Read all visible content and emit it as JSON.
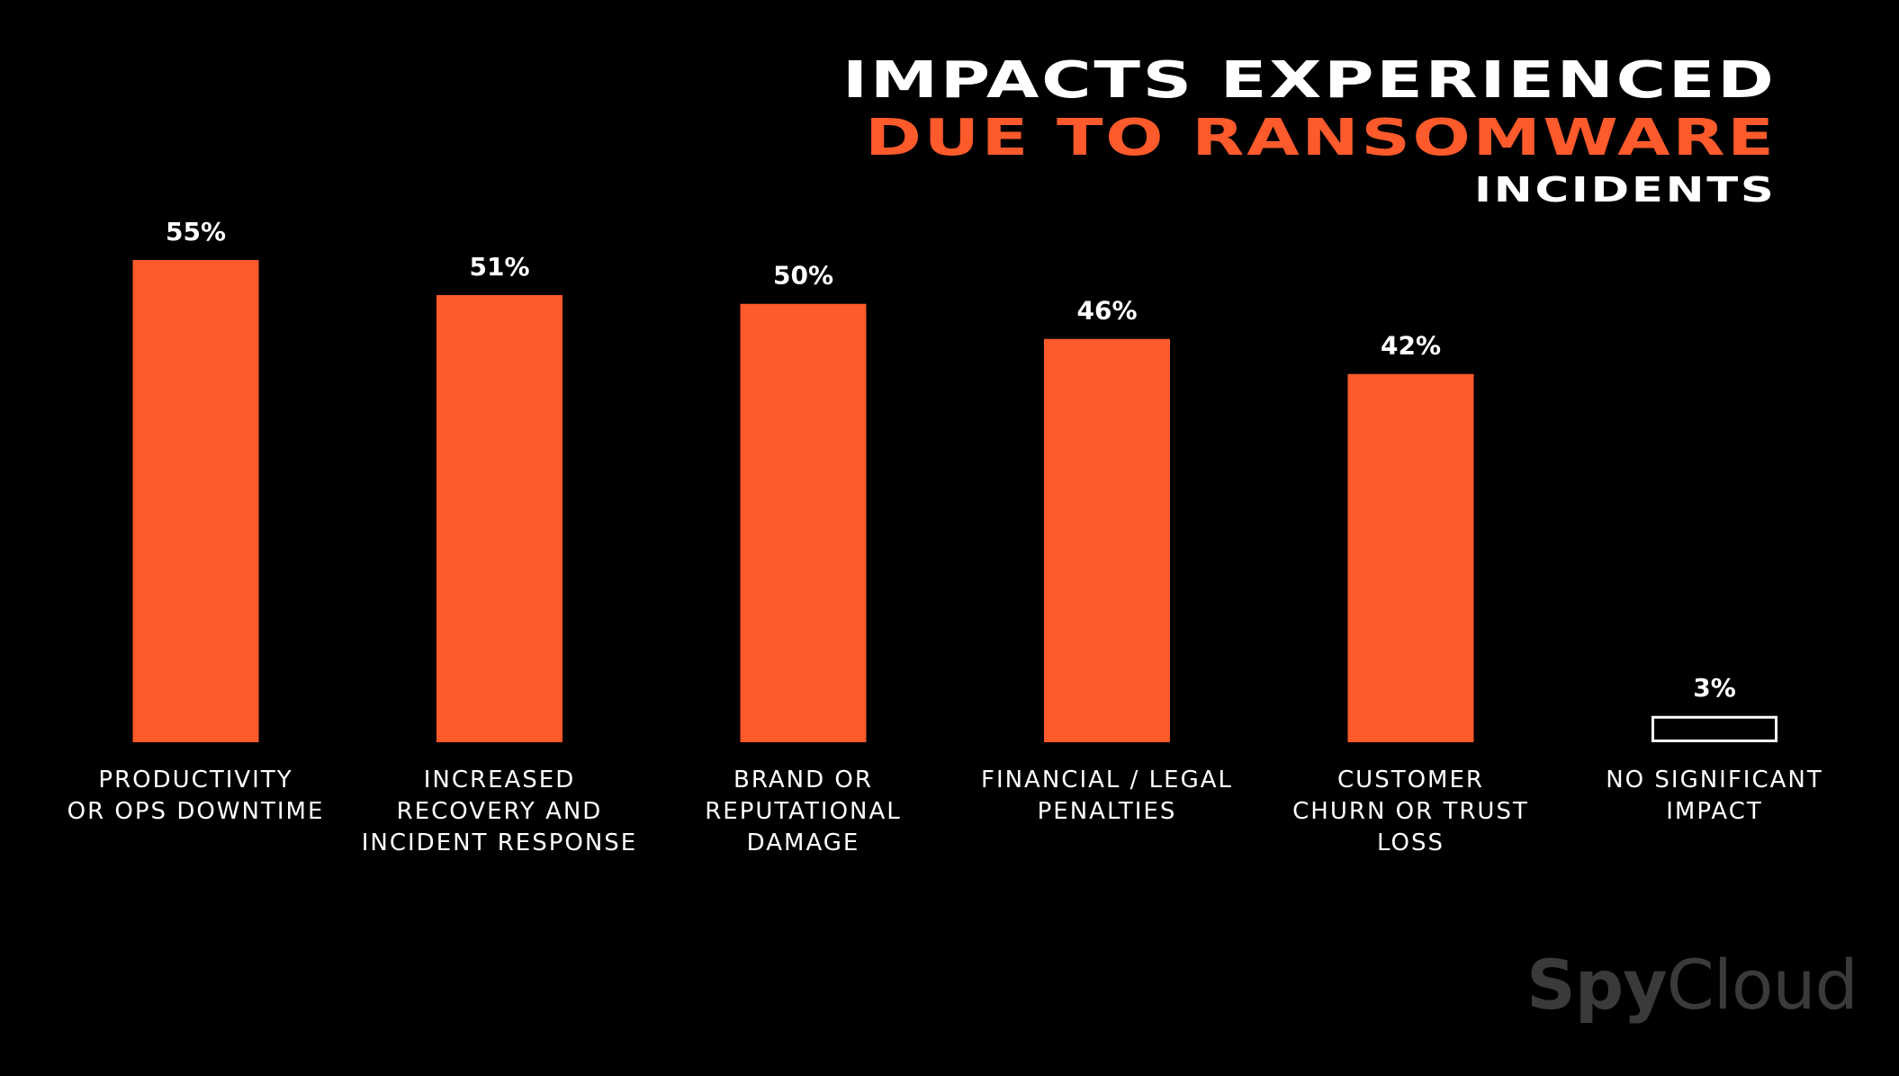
{
  "title": {
    "line1": "IMPACTS EXPERIENCED",
    "line2": "DUE TO RANSOMWARE",
    "line3": "INCIDENTS"
  },
  "brand": {
    "part1": "Spy",
    "part2": "Cloud"
  },
  "colors": {
    "accent": "#ff5a2b",
    "background": "#000000",
    "text": "#ffffff",
    "logo": "#3a3a3a"
  },
  "chart_data": {
    "type": "bar",
    "categories": [
      "PRODUCTIVITY\nOR OPS DOWNTIME",
      "INCREASED\nRECOVERY AND\nINCIDENT RESPONSE",
      "BRAND OR\nREPUTATIONAL\nDAMAGE",
      "FINANCIAL / LEGAL\nPENALTIES",
      "CUSTOMER\nCHURN OR TRUST\nLOSS",
      "NO SIGNIFICANT\nIMPACT"
    ],
    "values": [
      55,
      51,
      50,
      46,
      42,
      3
    ],
    "data_labels": [
      "55%",
      "51%",
      "50%",
      "46%",
      "42%",
      "3%"
    ],
    "unit": "%",
    "title": "IMPACTS EXPERIENCED DUE TO RANSOMWARE INCIDENTS",
    "xlabel": "",
    "ylabel": "",
    "ylim": [
      0,
      55
    ],
    "grid": false,
    "legend": "none",
    "highlight_style": {
      "filled": [
        true,
        true,
        true,
        true,
        true,
        false
      ]
    }
  }
}
